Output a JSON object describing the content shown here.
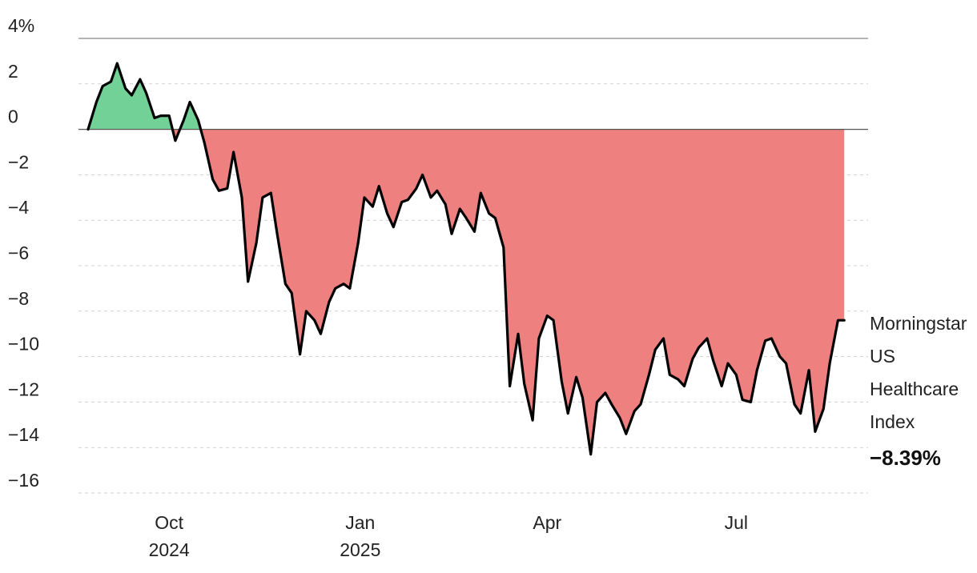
{
  "chart_data": {
    "type": "area",
    "title": "",
    "xlabel": "",
    "ylabel": "",
    "ylim": [
      -16,
      4
    ],
    "y_ticks": [
      {
        "value": 4,
        "label": "4%"
      },
      {
        "value": 2,
        "label": "2"
      },
      {
        "value": 0,
        "label": "0"
      },
      {
        "value": -2,
        "label": "−2"
      },
      {
        "value": -4,
        "label": "−4"
      },
      {
        "value": -6,
        "label": "−6"
      },
      {
        "value": -8,
        "label": "−8"
      },
      {
        "value": -10,
        "label": "−10"
      },
      {
        "value": -12,
        "label": "−12"
      },
      {
        "value": -14,
        "label": "−14"
      },
      {
        "value": -16,
        "label": "−16"
      }
    ],
    "xlim": [
      "2024-08-23",
      "2025-08-25"
    ],
    "x_ticks": [
      {
        "date": "2024-10-01",
        "month": "Oct",
        "year": "2024"
      },
      {
        "date": "2025-01-01",
        "month": "Jan",
        "year": "2025"
      },
      {
        "date": "2025-04-01",
        "month": "Apr",
        "year": ""
      },
      {
        "date": "2025-07-01",
        "month": "Jul",
        "year": ""
      }
    ],
    "grid": true,
    "colors": {
      "positive_fill": "#72d196",
      "negative_fill": "#ee8080",
      "line": "#000000",
      "zero_line": "#555555"
    },
    "series": [
      {
        "name": "Morningstar US Healthcare Index",
        "label_lines": [
          "Morningstar",
          "US",
          "Healthcare",
          "Index"
        ],
        "end_value_label": "−8.39%",
        "x": [
          "2024-08-23",
          "2024-08-27",
          "2024-08-30",
          "2024-09-03",
          "2024-09-06",
          "2024-09-10",
          "2024-09-13",
          "2024-09-17",
          "2024-09-20",
          "2024-09-24",
          "2024-09-27",
          "2024-10-01",
          "2024-10-04",
          "2024-10-08",
          "2024-10-11",
          "2024-10-15",
          "2024-10-18",
          "2024-10-22",
          "2024-10-25",
          "2024-10-29",
          "2024-11-01",
          "2024-11-05",
          "2024-11-08",
          "2024-11-12",
          "2024-11-15",
          "2024-11-19",
          "2024-11-22",
          "2024-11-26",
          "2024-11-29",
          "2024-12-03",
          "2024-12-06",
          "2024-12-10",
          "2024-12-13",
          "2024-12-17",
          "2024-12-20",
          "2024-12-24",
          "2024-12-27",
          "2024-12-31",
          "2025-01-03",
          "2025-01-07",
          "2025-01-10",
          "2025-01-14",
          "2025-01-17",
          "2025-01-21",
          "2025-01-24",
          "2025-01-28",
          "2025-01-31",
          "2025-02-04",
          "2025-02-07",
          "2025-02-11",
          "2025-02-14",
          "2025-02-18",
          "2025-02-21",
          "2025-02-25",
          "2025-02-28",
          "2025-03-04",
          "2025-03-07",
          "2025-03-11",
          "2025-03-14",
          "2025-03-18",
          "2025-03-21",
          "2025-03-25",
          "2025-03-28",
          "2025-04-01",
          "2025-04-04",
          "2025-04-08",
          "2025-04-11",
          "2025-04-15",
          "2025-04-18",
          "2025-04-22",
          "2025-04-25",
          "2025-04-29",
          "2025-05-02",
          "2025-05-06",
          "2025-05-09",
          "2025-05-13",
          "2025-05-16",
          "2025-05-20",
          "2025-05-23",
          "2025-05-27",
          "2025-05-30",
          "2025-06-03",
          "2025-06-06",
          "2025-06-10",
          "2025-06-13",
          "2025-06-17",
          "2025-06-20",
          "2025-06-24",
          "2025-06-27",
          "2025-07-01",
          "2025-07-04",
          "2025-07-08",
          "2025-07-11",
          "2025-07-15",
          "2025-07-18",
          "2025-07-22",
          "2025-07-25",
          "2025-07-29",
          "2025-08-01",
          "2025-08-05",
          "2025-08-08",
          "2025-08-12",
          "2025-08-15",
          "2025-08-19",
          "2025-08-22"
        ],
        "values": [
          0.0,
          1.2,
          1.9,
          2.1,
          2.9,
          1.8,
          1.5,
          2.2,
          1.6,
          0.5,
          0.6,
          0.6,
          -0.5,
          0.4,
          1.2,
          0.4,
          -0.6,
          -2.2,
          -2.7,
          -2.6,
          -1.0,
          -3.0,
          -6.7,
          -5.0,
          -3.0,
          -2.8,
          -4.6,
          -6.8,
          -7.2,
          -9.9,
          -8.0,
          -8.4,
          -9.0,
          -7.6,
          -7.0,
          -6.8,
          -7.0,
          -5.0,
          -3.0,
          -3.4,
          -2.5,
          -3.7,
          -4.3,
          -3.2,
          -3.1,
          -2.6,
          -2.0,
          -3.0,
          -2.7,
          -3.3,
          -4.6,
          -3.5,
          -3.9,
          -4.5,
          -2.8,
          -3.7,
          -3.9,
          -5.2,
          -11.3,
          -9.0,
          -11.2,
          -12.8,
          -9.2,
          -8.2,
          -8.4,
          -11.1,
          -12.5,
          -10.9,
          -11.8,
          -14.3,
          -12.0,
          -11.6,
          -12.1,
          -12.7,
          -13.4,
          -12.4,
          -12.1,
          -10.8,
          -9.7,
          -9.2,
          -10.8,
          -11.0,
          -11.3,
          -10.1,
          -9.6,
          -9.2,
          -10.2,
          -11.3,
          -10.3,
          -10.8,
          -11.9,
          -12.0,
          -10.6,
          -9.3,
          -9.2,
          -10.0,
          -10.3,
          -12.1,
          -12.5,
          -10.6,
          -13.3,
          -12.3,
          -10.3,
          -8.4,
          -8.4
        ]
      }
    ]
  }
}
